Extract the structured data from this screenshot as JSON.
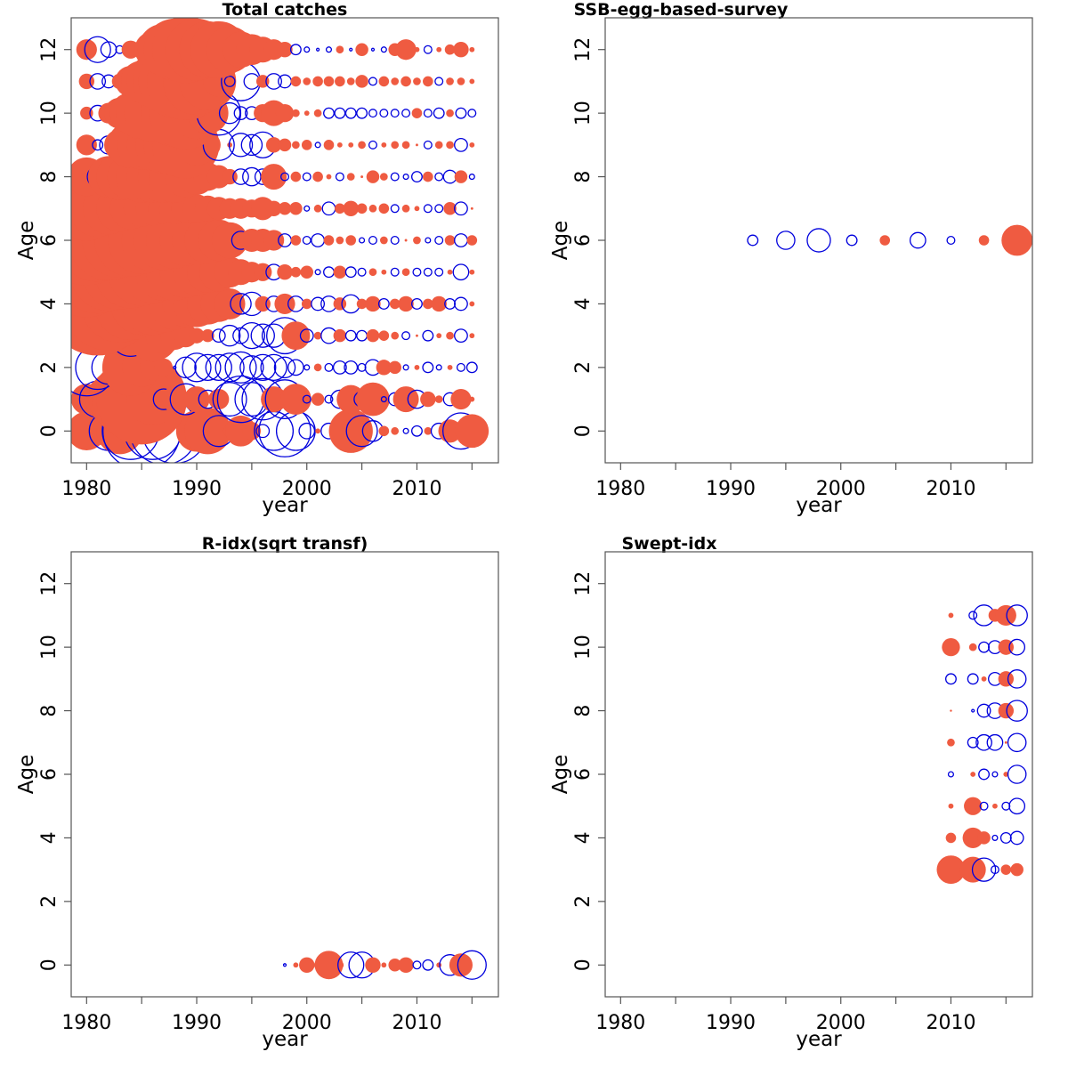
{
  "colors": {
    "positive": "#ef5b41",
    "negative": "#0000dd"
  },
  "chart_data": [
    {
      "type": "scatter",
      "title": "Total catches",
      "xlabel": "year",
      "ylabel": "Age",
      "xlim": [
        1978.6,
        2017.4
      ],
      "ylim": [
        -1,
        13
      ],
      "xticks": [
        1980,
        1990,
        2000,
        2010
      ],
      "yticks": [
        0,
        2,
        4,
        6,
        8,
        10,
        12
      ],
      "grid": false,
      "encoding": "bubble radius = |residual|, filled = positive, open = negative",
      "ages": [
        0,
        1,
        2,
        3,
        4,
        5,
        6,
        7,
        8,
        9,
        10,
        11,
        12
      ],
      "years": [
        1980,
        1981,
        1982,
        1983,
        1984,
        1985,
        1986,
        1987,
        1988,
        1989,
        1990,
        1991,
        1992,
        1993,
        1994,
        1995,
        1996,
        1997,
        1998,
        1999,
        2000,
        2001,
        2002,
        2003,
        2004,
        2005,
        2006,
        2007,
        2008,
        2009,
        2010,
        2011,
        2012,
        2013,
        2014,
        2015
      ],
      "residuals": [
        [
          1.5,
          1.1,
          -1.5,
          1.8,
          -2.2,
          -3.0,
          -2.2,
          -2.6,
          -2.5,
          0.4,
          1.6,
          1.8,
          -1.2,
          0.5,
          1.2,
          0.7,
          -0.5,
          -1.5,
          -2.0,
          -1.5,
          -0.6,
          0.2,
          -0.6,
          0.6,
          1.7,
          -1.2,
          -0.8,
          0.4,
          0.3,
          -0.2,
          -0.4,
          0.3,
          -0.6,
          0.9,
          -1.4,
          1.3
        ],
        [
          1.2,
          -1.4,
          1.8,
          2.4,
          3.0,
          3.5,
          2.0,
          -0.8,
          1.0,
          -1.2,
          1.0,
          -0.7,
          0.8,
          -1.3,
          -1.8,
          -1.3,
          -1.6,
          1.0,
          -1.5,
          1.2,
          -0.3,
          0.5,
          -0.3,
          -0.7,
          1.1,
          -0.6,
          1.3,
          -0.2,
          -0.5,
          1.0,
          -0.7,
          0.6,
          0.3,
          -0.5,
          0.8,
          0.2
        ],
        [
          -2.2,
          -1.7,
          -1.3,
          1.2,
          2.2,
          1.5,
          1.0,
          0.7,
          -0.1,
          -0.8,
          -1.1,
          -1.0,
          -1.0,
          -1.1,
          -1.2,
          -0.9,
          -1.0,
          -1.0,
          -0.8,
          -0.6,
          -0.2,
          0.3,
          -0.3,
          -0.5,
          -0.5,
          -0.3,
          -0.6,
          0.6,
          0.5,
          -0.2,
          0.2,
          -0.4,
          -0.2,
          0.2,
          -0.3,
          -0.4
        ],
        [
          1.0,
          -0.8,
          -1.0,
          1.5,
          -1.6,
          1.5,
          2.0,
          1.4,
          1.1,
          0.9,
          0.6,
          0.5,
          -0.5,
          -0.8,
          -0.6,
          -1.0,
          -0.9,
          -0.9,
          -1.4,
          1.1,
          -0.5,
          0.3,
          -0.6,
          0.5,
          -0.4,
          -0.4,
          0.5,
          0.4,
          0.3,
          -0.3,
          0.1,
          -0.4,
          0.2,
          0.3,
          -0.5,
          0.2
        ],
        [
          -1.0,
          4.0,
          3.6,
          3.0,
          2.8,
          2.4,
          2.4,
          2.2,
          2.0,
          1.8,
          1.8,
          1.6,
          1.4,
          1.2,
          -0.8,
          -0.9,
          0.6,
          -0.6,
          0.8,
          -0.6,
          0.4,
          -0.5,
          -0.6,
          0.5,
          -0.7,
          0.4,
          0.6,
          -0.4,
          0.4,
          0.6,
          -0.4,
          0.4,
          0.6,
          -0.4,
          -0.5,
          0.2
        ],
        [
          3.5,
          3.2,
          3.0,
          2.9,
          2.8,
          2.6,
          2.4,
          2.2,
          2.2,
          2.0,
          1.8,
          1.6,
          1.5,
          1.2,
          1.0,
          0.8,
          0.7,
          -0.6,
          0.6,
          0.4,
          0.5,
          -0.2,
          -0.4,
          0.5,
          -0.4,
          -0.3,
          0.3,
          0.2,
          -0.3,
          0.3,
          -0.3,
          -0.3,
          -0.3,
          0.2,
          -0.6,
          0.2
        ],
        [
          3.5,
          3.2,
          3.1,
          2.9,
          2.8,
          2.6,
          2.4,
          2.3,
          2.2,
          2.0,
          1.9,
          1.8,
          1.6,
          1.4,
          -0.7,
          0.9,
          0.9,
          0.8,
          -0.5,
          0.4,
          -0.3,
          -0.5,
          0.4,
          0.3,
          0.4,
          -0.2,
          -0.3,
          0.3,
          -0.3,
          0.1,
          0.3,
          -0.2,
          -0.3,
          0.4,
          -0.5,
          0.4
        ],
        [
          2.5,
          2.2,
          2.0,
          1.8,
          1.6,
          1.4,
          1.3,
          1.2,
          1.2,
          1.1,
          1.1,
          1.0,
          0.9,
          0.8,
          0.8,
          0.7,
          0.9,
          0.6,
          0.5,
          0.5,
          -0.2,
          0.3,
          -0.5,
          0.4,
          0.6,
          0.4,
          0.3,
          0.4,
          -0.3,
          0.3,
          0.2,
          -0.3,
          -0.3,
          0.5,
          -0.5,
          0.1
        ],
        [
          1.5,
          -0.8,
          1.6,
          1.8,
          1.8,
          2.0,
          2.0,
          2.0,
          2.0,
          1.6,
          1.4,
          1.1,
          0.9,
          0.6,
          -0.6,
          -0.7,
          -0.6,
          1.0,
          -0.3,
          0.4,
          -0.3,
          0.4,
          0.2,
          -0.3,
          0.3,
          0.1,
          0.5,
          0.3,
          -0.3,
          -0.2,
          -0.4,
          0.4,
          -0.3,
          -0.5,
          0.5,
          -0.2
        ],
        [
          0.8,
          -0.4,
          -0.7,
          1.2,
          1.8,
          1.9,
          2.0,
          2.2,
          2.4,
          2.6,
          1.6,
          1.0,
          -1.2,
          0.2,
          -0.9,
          -0.8,
          -1.0,
          0.6,
          0.5,
          0.3,
          0.4,
          -0.2,
          0.4,
          0.2,
          0.2,
          0.3,
          -0.3,
          0.2,
          0.3,
          0.3,
          0.1,
          -0.3,
          0.3,
          0.3,
          -0.5,
          0.2
        ],
        [
          0.5,
          -0.6,
          0.8,
          1.2,
          1.6,
          2.0,
          2.2,
          -0.1,
          2.6,
          2.8,
          2.0,
          1.6,
          -1.7,
          -0.8,
          -0.5,
          -0.5,
          0.7,
          1.0,
          0.7,
          0.3,
          0.2,
          0.3,
          -0.4,
          -0.4,
          -0.4,
          -0.4,
          -0.3,
          -0.3,
          -0.3,
          -0.3,
          0.4,
          -0.3,
          -0.4,
          0.3,
          -0.4,
          -0.3
        ],
        [
          0.6,
          -0.6,
          -0.5,
          0.6,
          1.2,
          1.6,
          2.0,
          2.4,
          2.8,
          3.0,
          2.6,
          2.2,
          1.2,
          -0.4,
          -1.5,
          -0.6,
          0.5,
          -0.6,
          -0.5,
          0.4,
          0.3,
          0.4,
          0.4,
          0.4,
          0.3,
          0.5,
          -0.3,
          0.4,
          0.3,
          0.4,
          0.3,
          0.4,
          -0.3,
          0.3,
          0.3,
          0.2
        ],
        [
          0.8,
          -1.0,
          -0.6,
          -0.3,
          0.7,
          -0.4,
          1.4,
          2.0,
          2.4,
          2.6,
          2.4,
          2.2,
          2.2,
          1.8,
          1.4,
          1.2,
          1.0,
          0.8,
          0.6,
          -0.4,
          -0.2,
          -0.1,
          -0.2,
          0.3,
          -0.1,
          0.5,
          -0.1,
          -0.2,
          0.5,
          0.8,
          0.2,
          -0.3,
          0.2,
          0.4,
          0.6,
          0.2
        ]
      ]
    },
    {
      "type": "scatter",
      "title": "SSB-egg-based-survey",
      "xlabel": "year",
      "ylabel": "Age",
      "xlim": [
        1978.6,
        2017.4
      ],
      "ylim": [
        -1,
        13
      ],
      "xticks": [
        1980,
        1990,
        2000,
        2010
      ],
      "yticks": [
        0,
        2,
        4,
        6,
        8,
        10,
        12
      ],
      "grid": false,
      "points": [
        {
          "x": 1992,
          "age": 6,
          "value": -0.4
        },
        {
          "x": 1995,
          "age": 6,
          "value": -0.7
        },
        {
          "x": 1998,
          "age": 6,
          "value": -0.9
        },
        {
          "x": 2001,
          "age": 6,
          "value": -0.4
        },
        {
          "x": 2004,
          "age": 6,
          "value": 0.4
        },
        {
          "x": 2007,
          "age": 6,
          "value": -0.6
        },
        {
          "x": 2010,
          "age": 6,
          "value": -0.3
        },
        {
          "x": 2013,
          "age": 6,
          "value": 0.4
        },
        {
          "x": 2016,
          "age": 6,
          "value": 1.2
        }
      ]
    },
    {
      "type": "scatter",
      "title": "R-idx(sqrt transf)",
      "xlabel": "year",
      "ylabel": "Age",
      "xlim": [
        1978.6,
        2017.4
      ],
      "ylim": [
        -1,
        13
      ],
      "xticks": [
        1980,
        1990,
        2000,
        2010
      ],
      "yticks": [
        0,
        2,
        4,
        6,
        8,
        10,
        12
      ],
      "grid": false,
      "points": [
        {
          "x": 1998,
          "age": 0,
          "value": -0.1
        },
        {
          "x": 1999,
          "age": 0,
          "value": 0.2
        },
        {
          "x": 2000,
          "age": 0,
          "value": 0.6
        },
        {
          "x": 2001,
          "age": 0,
          "value": 0.3
        },
        {
          "x": 2002,
          "age": 0,
          "value": 1.1
        },
        {
          "x": 2003,
          "age": 0,
          "value": 0.3
        },
        {
          "x": 2004,
          "age": 0,
          "value": -1.0
        },
        {
          "x": 2005,
          "age": 0,
          "value": -1.0
        },
        {
          "x": 2006,
          "age": 0,
          "value": 0.6
        },
        {
          "x": 2007,
          "age": 0,
          "value": 0.2
        },
        {
          "x": 2008,
          "age": 0,
          "value": 0.5
        },
        {
          "x": 2009,
          "age": 0,
          "value": 0.6
        },
        {
          "x": 2010,
          "age": 0,
          "value": -0.3
        },
        {
          "x": 2011,
          "age": 0,
          "value": -0.4
        },
        {
          "x": 2012,
          "age": 0,
          "value": 0.2
        },
        {
          "x": 2013,
          "age": 0,
          "value": -0.8
        },
        {
          "x": 2014,
          "age": 0,
          "value": 0.9
        },
        {
          "x": 2015,
          "age": 0,
          "value": -1.1
        }
      ]
    },
    {
      "type": "scatter",
      "title": "Swept-idx",
      "xlabel": "year",
      "ylabel": "Age",
      "xlim": [
        1978.6,
        2017.4
      ],
      "ylim": [
        -1,
        13
      ],
      "xticks": [
        1980,
        1990,
        2000,
        2010
      ],
      "yticks": [
        0,
        2,
        4,
        6,
        8,
        10,
        12
      ],
      "grid": false,
      "ages": [
        3,
        4,
        5,
        6,
        7,
        8,
        9,
        10,
        11
      ],
      "years": [
        2010,
        2012,
        2013,
        2014,
        2015,
        2016
      ],
      "residuals": [
        [
          1.1,
          1.0,
          -0.9,
          -0.3,
          0.4,
          0.5
        ],
        [
          0.4,
          0.8,
          0.5,
          -0.2,
          -0.4,
          -0.5
        ],
        [
          0.2,
          0.7,
          -0.3,
          0.2,
          -0.3,
          -0.6
        ],
        [
          -0.2,
          0.2,
          -0.4,
          -0.2,
          0.2,
          -0.7
        ],
        [
          0.3,
          -0.4,
          -0.6,
          -0.6,
          0.1,
          -0.7
        ],
        [
          0.05,
          -0.1,
          -0.5,
          -0.6,
          0.6,
          -0.8
        ],
        [
          -0.4,
          -0.4,
          0.2,
          -0.5,
          0.6,
          -0.7
        ],
        [
          0.7,
          0.3,
          -0.4,
          -0.5,
          0.6,
          -0.6
        ],
        [
          0.2,
          -0.3,
          -0.8,
          0.5,
          0.8,
          -0.8
        ]
      ]
    }
  ]
}
